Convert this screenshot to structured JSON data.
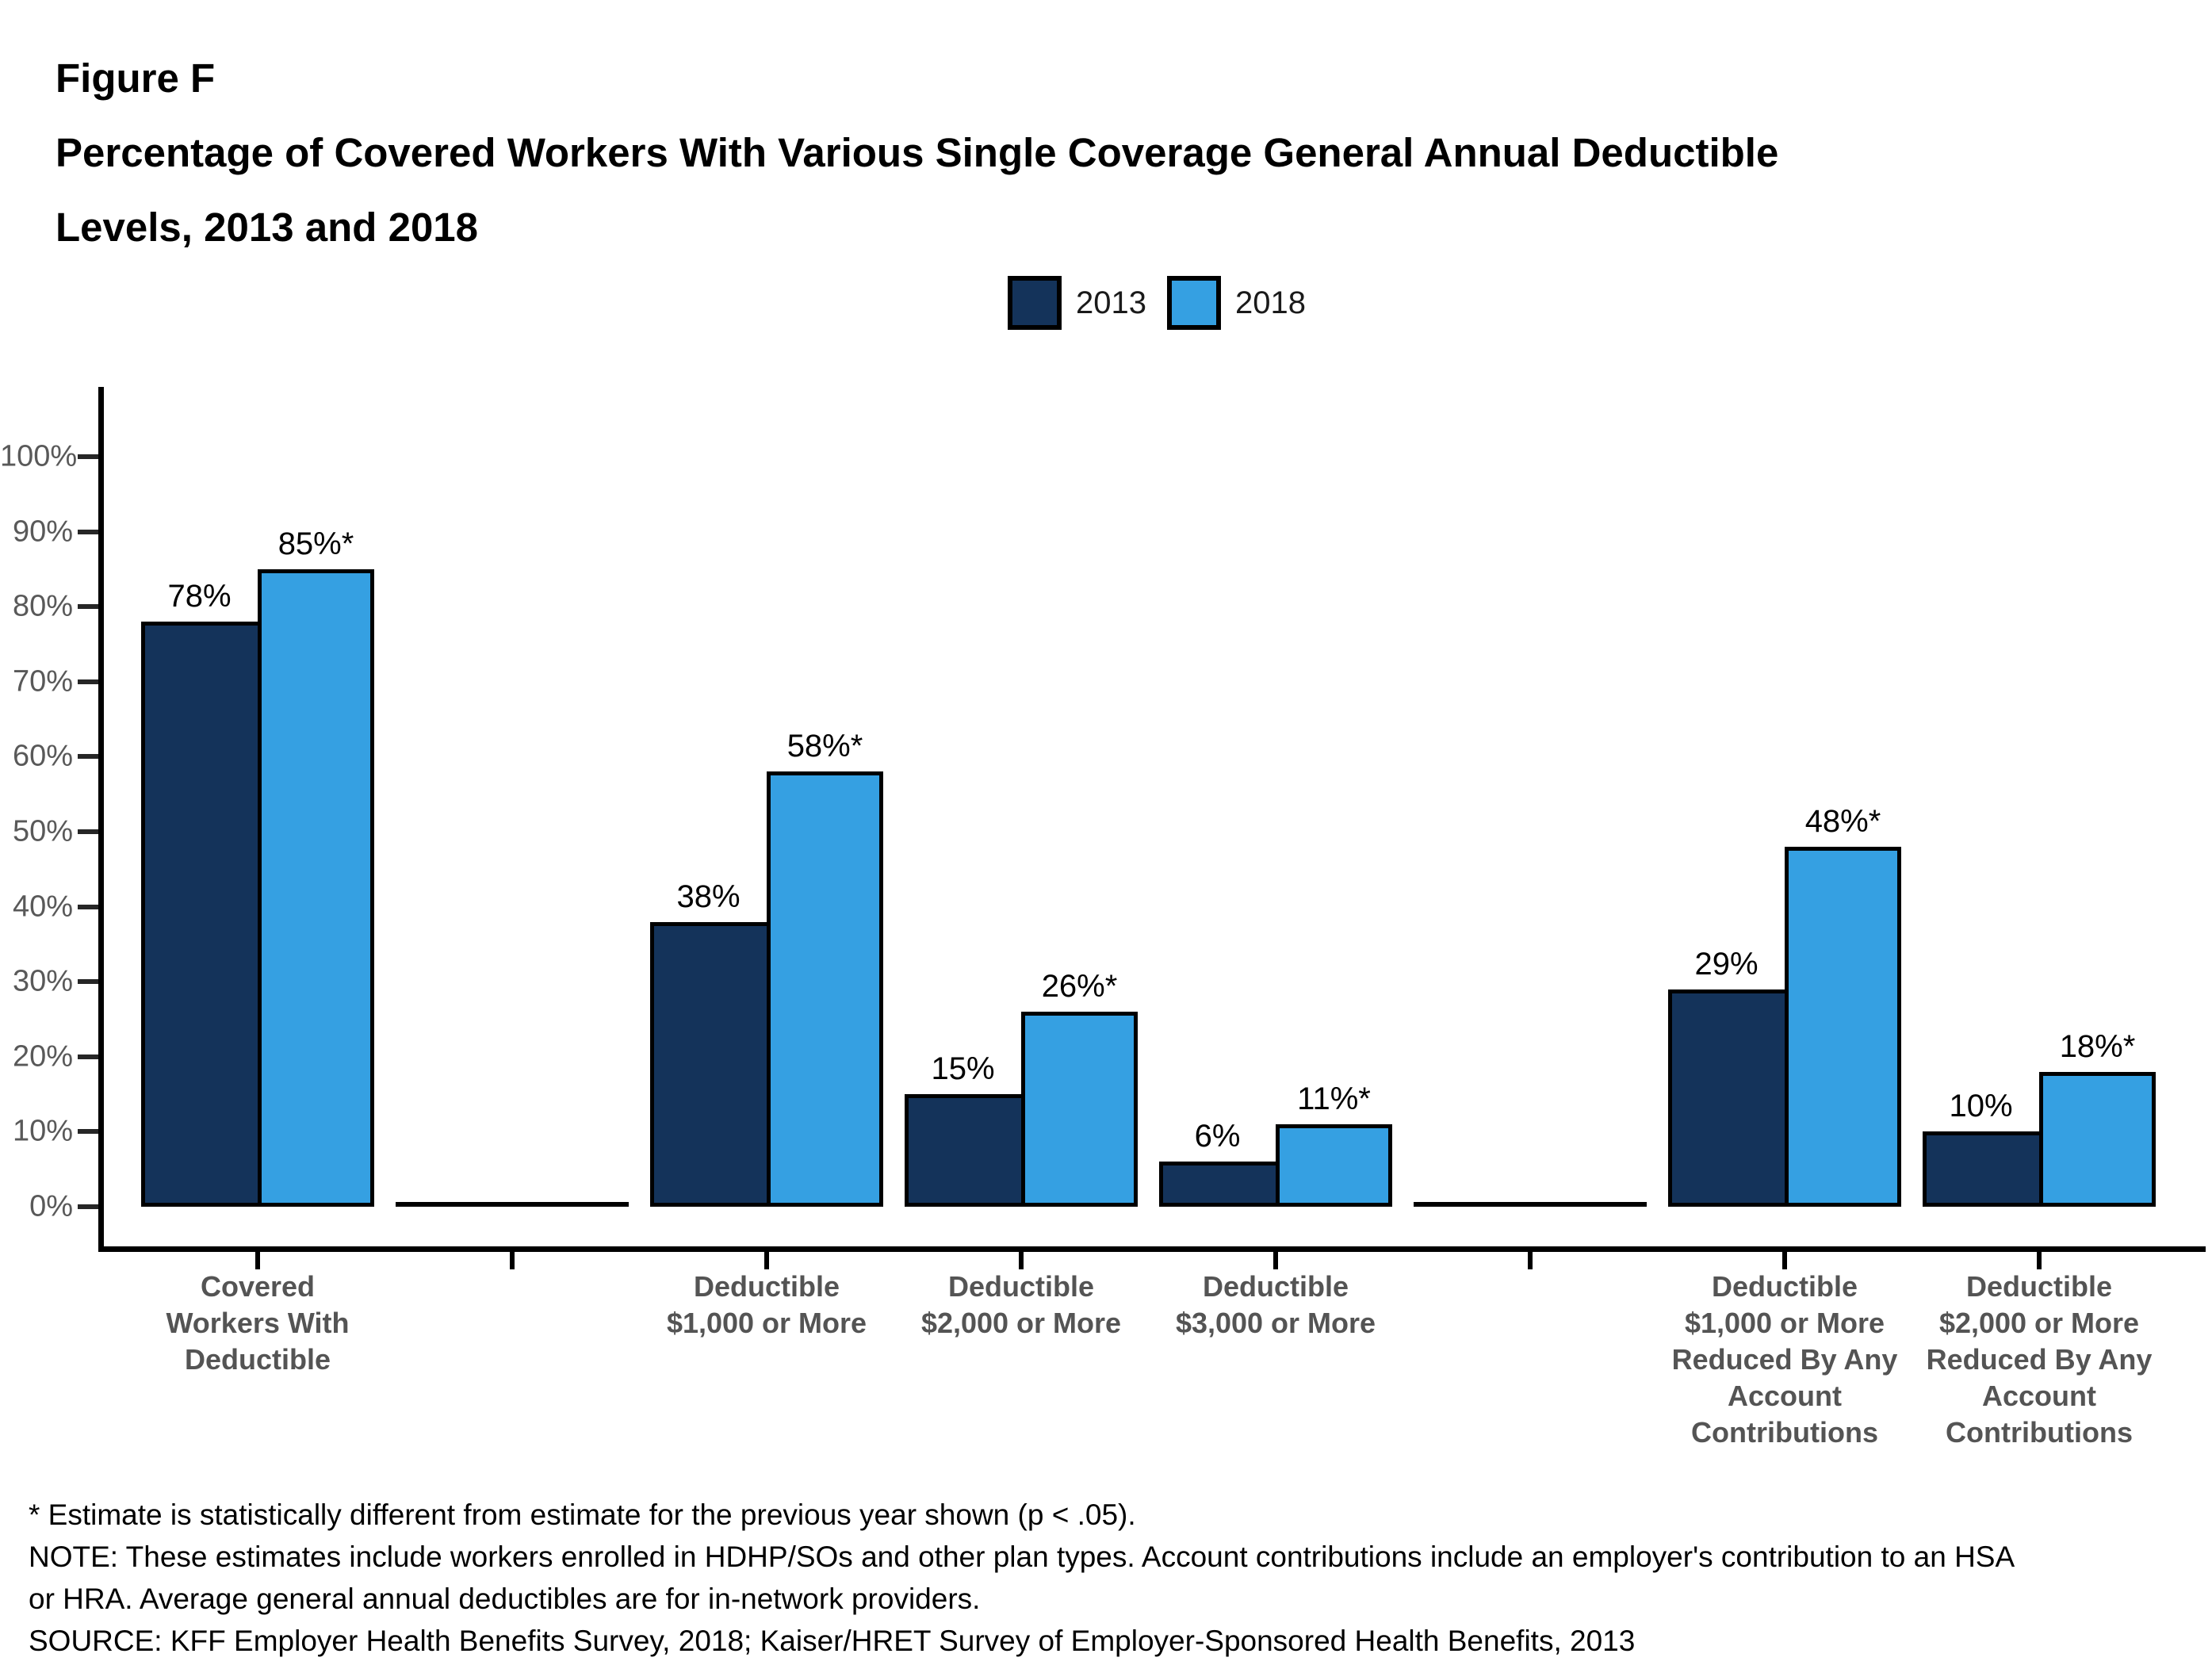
{
  "figure_label": "Figure F",
  "title_lines": [
    "Percentage of Covered Workers With Various Single Coverage General Annual Deductible",
    "Levels, 2013 and 2018"
  ],
  "chart_data": {
    "type": "bar",
    "title": "Percentage of Covered Workers With Various Single Coverage General Annual Deductible Levels, 2013 and 2018",
    "xlabel": "",
    "ylabel": "",
    "ylim": [
      0,
      100
    ],
    "ytick_step": 10,
    "ytick_labels": [
      "0%",
      "10%",
      "20%",
      "30%",
      "40%",
      "50%",
      "60%",
      "70%",
      "80%",
      "90%",
      "100%"
    ],
    "grid": false,
    "legend_position": "top",
    "categories": [
      "Covered\nWorkers With\nDeductible",
      "",
      "Deductible\n$1,000 or More",
      "Deductible\n$2,000 or More",
      "Deductible\n$3,000 or More",
      "",
      "Deductible\n$1,000 or More\nReduced By Any\nAccount\nContributions",
      "Deductible\n$2,000 or More\nReduced By Any\nAccount\nContributions"
    ],
    "series": [
      {
        "name": "2013",
        "color": "#14335A",
        "values": [
          78,
          null,
          38,
          15,
          6,
          null,
          29,
          10
        ],
        "data_labels": [
          "78%",
          null,
          "38%",
          "15%",
          "6%",
          null,
          "29%",
          "10%"
        ]
      },
      {
        "name": "2018",
        "color": "#35A0E2",
        "values": [
          85,
          null,
          58,
          26,
          11,
          null,
          48,
          18
        ],
        "data_labels": [
          "85%*",
          null,
          "58%*",
          "26%*",
          "11%*",
          null,
          "48%*",
          "18%*"
        ]
      }
    ]
  },
  "footnotes": {
    "lines": [
      "* Estimate is statistically different from estimate for the previous year shown (p < .05).",
      "NOTE: These estimates include workers enrolled in HDHP/SOs and other plan types. Account contributions include an employer's contribution to an HSA",
      "or HRA. Average general annual deductibles are for in-network providers.",
      "SOURCE: KFF Employer Health Benefits Survey, 2018; Kaiser/HRET Survey of Employer-Sponsored Health Benefits, 2013"
    ]
  }
}
